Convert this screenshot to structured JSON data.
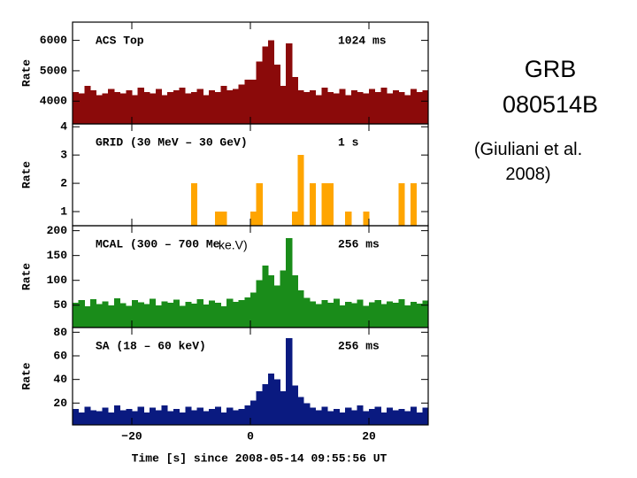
{
  "slide": {
    "title": "GRB 080514B",
    "citation": "(Giuliani et al. 2008)"
  },
  "chart_data": [
    {
      "type": "histogram",
      "panel_label": "ACS Top",
      "resolution": "1024 ms",
      "y_label": "Rate",
      "color": "#8b0a0a",
      "xlim": [
        -30,
        30
      ],
      "ylim": [
        3250,
        6600
      ],
      "yticks": [
        4000,
        5000,
        6000
      ],
      "bins": [
        -30,
        -29,
        -28,
        -27,
        -26,
        -25,
        -24,
        -23,
        -22,
        -21,
        -20,
        -19,
        -18,
        -17,
        -16,
        -15,
        -14,
        -13,
        -12,
        -11,
        -10,
        -9,
        -8,
        -7,
        -6,
        -5,
        -4,
        -3,
        -2,
        -1,
        0,
        1,
        2,
        3,
        4,
        5,
        6,
        7,
        8,
        9,
        10,
        11,
        12,
        13,
        14,
        15,
        16,
        17,
        18,
        19,
        20,
        21,
        22,
        23,
        24,
        25,
        26,
        27,
        28,
        29,
        30
      ],
      "values": [
        4300,
        4250,
        4500,
        4350,
        4200,
        4250,
        4400,
        4300,
        4250,
        4350,
        4200,
        4450,
        4300,
        4250,
        4400,
        4200,
        4300,
        4350,
        4450,
        4250,
        4300,
        4400,
        4200,
        4350,
        4300,
        4500,
        4350,
        4400,
        4550,
        4700,
        4700,
        5300,
        5800,
        6000,
        5200,
        4500,
        5900,
        4800,
        4350,
        4300,
        4350,
        4200,
        4450,
        4300,
        4250,
        4400,
        4200,
        4350,
        4300,
        4250,
        4400,
        4300,
        4450,
        4250,
        4350,
        4300,
        4200,
        4400,
        4300,
        4350
      ]
    },
    {
      "type": "histogram",
      "panel_label": "GRID (30 MeV – 30 GeV)",
      "resolution": "1 s",
      "y_label": "Rate",
      "color": "#ffa500",
      "xlim": [
        -30,
        30
      ],
      "ylim": [
        0.5,
        4.1
      ],
      "yticks": [
        1,
        2,
        3,
        4
      ],
      "bins": [
        -30,
        -29,
        -28,
        -27,
        -26,
        -25,
        -24,
        -23,
        -22,
        -21,
        -20,
        -19,
        -18,
        -17,
        -16,
        -15,
        -14,
        -13,
        -12,
        -11,
        -10,
        -9,
        -8,
        -7,
        -6,
        -5,
        -4,
        -3,
        -2,
        -1,
        0,
        1,
        2,
        3,
        4,
        5,
        6,
        7,
        8,
        9,
        10,
        11,
        12,
        13,
        14,
        15,
        16,
        17,
        18,
        19,
        20,
        21,
        22,
        23,
        24,
        25,
        26,
        27,
        28,
        29,
        30
      ],
      "values": [
        0,
        0,
        0,
        0,
        0,
        0,
        0,
        0,
        0,
        0,
        0,
        0,
        0,
        0,
        0,
        0,
        0,
        0,
        0,
        0,
        2,
        0,
        0,
        0,
        1,
        1,
        0,
        0,
        0,
        0,
        1,
        2,
        0,
        0,
        0,
        0,
        0,
        1,
        3,
        0,
        2,
        0,
        2,
        2,
        0,
        0,
        1,
        0,
        0,
        1,
        0,
        0,
        0,
        0,
        0,
        2,
        0,
        2,
        0,
        0
      ]
    },
    {
      "type": "histogram",
      "panel_label": "MCAL (300 – 700 Me",
      "panel_note": "ke.V)",
      "resolution": "256 ms",
      "y_label": "Rate",
      "color": "#1a8c1a",
      "xlim": [
        -30,
        30
      ],
      "ylim": [
        5,
        210
      ],
      "yticks": [
        50,
        100,
        150,
        200
      ],
      "bins": [
        -30,
        -29,
        -28,
        -27,
        -26,
        -25,
        -24,
        -23,
        -22,
        -21,
        -20,
        -19,
        -18,
        -17,
        -16,
        -15,
        -14,
        -13,
        -12,
        -11,
        -10,
        -9,
        -8,
        -7,
        -6,
        -5,
        -4,
        -3,
        -2,
        -1,
        0,
        1,
        2,
        3,
        4,
        5,
        6,
        7,
        8,
        9,
        10,
        11,
        12,
        13,
        14,
        15,
        16,
        17,
        18,
        19,
        20,
        21,
        22,
        23,
        24,
        25,
        26,
        27,
        28,
        29,
        30
      ],
      "values": [
        55,
        60,
        48,
        62,
        52,
        58,
        50,
        64,
        54,
        49,
        60,
        56,
        52,
        63,
        50,
        58,
        55,
        61,
        49,
        57,
        53,
        62,
        51,
        59,
        55,
        48,
        63,
        57,
        60,
        66,
        75,
        100,
        130,
        110,
        90,
        120,
        185,
        110,
        80,
        65,
        58,
        52,
        60,
        55,
        63,
        50,
        57,
        54,
        61,
        49,
        56,
        60,
        52,
        58,
        55,
        62,
        50,
        57,
        53,
        59
      ]
    },
    {
      "type": "histogram",
      "panel_label": "SA (18 – 60 keV)",
      "resolution": "256 ms",
      "y_label": "Rate",
      "color": "#0a1a80",
      "xlim": [
        -30,
        30
      ],
      "ylim": [
        1.5,
        84
      ],
      "yticks": [
        20,
        40,
        60,
        80
      ],
      "x_label": "Time [s] since 2008-05-14 09:55:56 UT",
      "xticks": [
        {
          "value": -20,
          "label": "−20"
        },
        0,
        20
      ],
      "bins": [
        -30,
        -29,
        -28,
        -27,
        -26,
        -25,
        -24,
        -23,
        -22,
        -21,
        -20,
        -19,
        -18,
        -17,
        -16,
        -15,
        -14,
        -13,
        -12,
        -11,
        -10,
        -9,
        -8,
        -7,
        -6,
        -5,
        -4,
        -3,
        -2,
        -1,
        0,
        1,
        2,
        3,
        4,
        5,
        6,
        7,
        8,
        9,
        10,
        11,
        12,
        13,
        14,
        15,
        16,
        17,
        18,
        19,
        20,
        21,
        22,
        23,
        24,
        25,
        26,
        27,
        28,
        29,
        30
      ],
      "values": [
        15,
        12,
        17,
        14,
        13,
        16,
        12,
        18,
        14,
        15,
        13,
        17,
        12,
        16,
        14,
        18,
        13,
        15,
        12,
        17,
        14,
        16,
        13,
        15,
        17,
        12,
        16,
        14,
        15,
        18,
        22,
        30,
        36,
        45,
        40,
        30,
        75,
        35,
        25,
        20,
        16,
        14,
        17,
        13,
        15,
        12,
        16,
        14,
        18,
        13,
        15,
        17,
        12,
        16,
        14,
        15,
        13,
        17,
        12,
        16
      ]
    }
  ]
}
